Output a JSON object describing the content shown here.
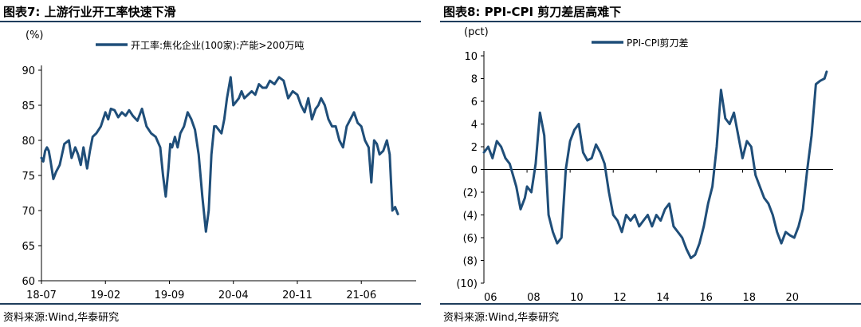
{
  "charts": [
    {
      "id": "left",
      "title": "图表7:   上游行业开工率快速下滑",
      "source": "资料来源:Wind,华泰研究",
      "chart_data": {
        "type": "line",
        "title": "图表7:   上游行业开工率快速下滑",
        "ylabel": "(%)",
        "ylim": [
          60,
          90
        ],
        "yticks": [
          60,
          65,
          70,
          75,
          80,
          85,
          90
        ],
        "xlim": [
          0,
          41
        ],
        "xticks": [
          {
            "value": 0,
            "label": "18-07"
          },
          {
            "value": 7,
            "label": "19-02"
          },
          {
            "value": 14,
            "label": "19-09"
          },
          {
            "value": 21,
            "label": "20-04"
          },
          {
            "value": 28,
            "label": "20-11"
          },
          {
            "value": 35,
            "label": "21-06"
          }
        ],
        "legend_position": "top-center",
        "grid": false,
        "color": "#1f4e79",
        "series": [
          {
            "name": "开工率:焦化企业(100家):产能>200万吨",
            "x": [
              0,
              0.2,
              0.4,
              0.6,
              0.8,
              1.0,
              1.3,
              1.6,
              2.0,
              2.5,
              3.0,
              3.3,
              3.7,
              4.0,
              4.3,
              4.6,
              5.0,
              5.3,
              5.6,
              6.0,
              6.5,
              7.0,
              7.3,
              7.6,
              8.0,
              8.4,
              8.8,
              9.2,
              9.6,
              10.0,
              10.5,
              11.0,
              11.5,
              12.0,
              12.5,
              13.0,
              13.3,
              13.6,
              13.9,
              14.1,
              14.3,
              14.6,
              14.9,
              15.2,
              15.6,
              16.0,
              16.4,
              16.8,
              17.2,
              17.6,
              18.0,
              18.3,
              18.6,
              18.9,
              19.1,
              19.4,
              19.7,
              20.0,
              20.3,
              20.7,
              21.0,
              21.3,
              21.6,
              21.9,
              22.2,
              22.6,
              23.0,
              23.4,
              23.8,
              24.2,
              24.6,
              25.0,
              25.5,
              26.0,
              26.5,
              27.0,
              27.5,
              28.0,
              28.4,
              28.8,
              29.2,
              29.6,
              30.0,
              30.3,
              30.6,
              31.0,
              31.4,
              31.8,
              32.2,
              32.6,
              33.0,
              33.4,
              33.8,
              34.2,
              34.6,
              35.0,
              35.4,
              35.8,
              36.1,
              36.4,
              36.7,
              37.0,
              37.4,
              37.8,
              38.1,
              38.4,
              38.7,
              39.0
            ],
            "y": [
              77.5,
              77,
              78.5,
              79,
              78.5,
              77,
              74.5,
              75.5,
              76.5,
              79.5,
              80,
              77.5,
              79,
              78,
              76.5,
              79,
              76,
              78.5,
              80.5,
              81,
              82,
              84,
              83,
              84.5,
              84.3,
              83.3,
              84,
              83.5,
              84.3,
              83.5,
              82.8,
              84.5,
              82,
              81,
              80.5,
              79,
              75,
              72,
              76,
              79.5,
              79,
              80.5,
              79,
              81,
              82,
              84,
              83,
              81.5,
              78,
              72,
              67,
              70,
              78,
              82,
              82,
              81.5,
              81,
              83,
              86,
              89,
              85,
              85.5,
              86,
              87,
              86,
              86.5,
              87,
              86.5,
              88,
              87.5,
              87.5,
              88.5,
              88,
              89,
              88.5,
              86,
              87,
              86.5,
              85,
              84,
              86,
              83,
              84.5,
              85,
              86,
              85,
              83,
              82,
              82,
              80,
              79,
              82,
              83,
              84,
              82.5,
              82,
              80,
              79,
              74,
              80,
              79.5,
              78,
              78.5,
              80,
              78,
              70,
              70.5,
              69.5
            ]
          }
        ]
      }
    },
    {
      "id": "right",
      "title": "图表8:   PPI-CPI 剪刀差居高难下",
      "source": "资料来源:Wind,华泰研究",
      "chart_data": {
        "type": "line",
        "title": "图表8:   PPI-CPI 剪刀差居高难下",
        "ylabel": "(pct)",
        "ylim": [
          -10,
          10
        ],
        "yticks": [
          -10,
          -8,
          -6,
          -4,
          -2,
          0,
          2,
          4,
          6,
          8,
          10
        ],
        "ytick_labels": [
          "(10)",
          "(8)",
          "(6)",
          "(4)",
          "(2)",
          "0",
          "2",
          "4",
          "6",
          "8",
          "10"
        ],
        "xlim": [
          2006,
          2022.2
        ],
        "xticks": [
          {
            "value": 2006,
            "label": "06"
          },
          {
            "value": 2008,
            "label": "08"
          },
          {
            "value": 2010,
            "label": "10"
          },
          {
            "value": 2012,
            "label": "12"
          },
          {
            "value": 2014,
            "label": "14"
          },
          {
            "value": 2016,
            "label": "16"
          },
          {
            "value": 2018,
            "label": "18"
          },
          {
            "value": 2020,
            "label": "20"
          }
        ],
        "legend_position": "top-center",
        "grid": false,
        "color": "#1f4e79",
        "series": [
          {
            "name": "PPI-CPI剪刀差",
            "x": [
              2006.0,
              2006.2,
              2006.4,
              2006.6,
              2006.8,
              2007.0,
              2007.2,
              2007.5,
              2007.7,
              2007.9,
              2008.0,
              2008.2,
              2008.4,
              2008.6,
              2008.8,
              2009.0,
              2009.2,
              2009.4,
              2009.6,
              2009.8,
              2010.0,
              2010.2,
              2010.4,
              2010.6,
              2010.8,
              2011.0,
              2011.2,
              2011.4,
              2011.6,
              2011.8,
              2012.0,
              2012.2,
              2012.4,
              2012.6,
              2012.8,
              2013.0,
              2013.2,
              2013.4,
              2013.6,
              2013.8,
              2014.0,
              2014.2,
              2014.4,
              2014.6,
              2014.8,
              2015.0,
              2015.2,
              2015.4,
              2015.6,
              2015.8,
              2016.0,
              2016.2,
              2016.4,
              2016.6,
              2016.8,
              2017.0,
              2017.2,
              2017.4,
              2017.6,
              2017.8,
              2018.0,
              2018.2,
              2018.4,
              2018.6,
              2018.8,
              2019.0,
              2019.2,
              2019.4,
              2019.6,
              2019.8,
              2020.0,
              2020.2,
              2020.4,
              2020.6,
              2020.8,
              2021.0,
              2021.2,
              2021.4,
              2021.6,
              2021.8,
              2021.9
            ],
            "y": [
              1.5,
              2.0,
              1.0,
              2.5,
              2.0,
              1.0,
              0.5,
              -1.5,
              -3.5,
              -2.5,
              -1.5,
              -2.0,
              0.5,
              5.0,
              3.0,
              -4.0,
              -5.5,
              -6.5,
              -6.0,
              0.0,
              2.5,
              3.5,
              4.0,
              1.5,
              0.8,
              1.0,
              2.2,
              1.5,
              0.5,
              -2.0,
              -4.0,
              -4.5,
              -5.5,
              -4.0,
              -4.5,
              -4.0,
              -5.0,
              -4.5,
              -4.0,
              -5.0,
              -4.0,
              -4.5,
              -3.5,
              -3.0,
              -5.0,
              -5.5,
              -6.0,
              -7.0,
              -7.8,
              -7.5,
              -6.5,
              -5.0,
              -3.0,
              -1.5,
              2.0,
              7.0,
              4.5,
              4.0,
              5.0,
              3.0,
              1.0,
              2.5,
              2.0,
              -0.5,
              -1.5,
              -2.5,
              -3.0,
              -4.0,
              -5.5,
              -6.5,
              -5.5,
              -5.8,
              -6.0,
              -5.0,
              -3.5,
              0.0,
              3.0,
              7.5,
              7.8,
              8.0,
              8.6
            ]
          }
        ]
      }
    }
  ]
}
